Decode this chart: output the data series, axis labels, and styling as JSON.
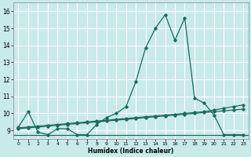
{
  "xlabel": "Humidex (Indice chaleur)",
  "background_color": "#c8eae8",
  "grid_color": "#ffffff",
  "line_color": "#1a6b5a",
  "xlim": [
    -0.5,
    23.5
  ],
  "ylim": [
    8.5,
    16.5
  ],
  "xticks": [
    0,
    1,
    2,
    3,
    4,
    5,
    6,
    7,
    8,
    9,
    10,
    11,
    12,
    13,
    14,
    15,
    16,
    17,
    18,
    19,
    20,
    21,
    22,
    23
  ],
  "yticks": [
    9,
    10,
    11,
    12,
    13,
    14,
    15,
    16
  ],
  "series1_x": [
    0,
    1,
    2,
    3,
    4,
    5,
    6,
    7,
    8,
    9,
    10,
    11,
    12,
    13,
    14,
    15,
    16,
    17,
    18,
    19,
    20,
    21,
    22,
    23
  ],
  "series1_y": [
    9.2,
    10.1,
    8.9,
    8.75,
    9.1,
    9.1,
    8.75,
    8.75,
    9.35,
    9.75,
    10.0,
    10.4,
    11.85,
    13.85,
    15.0,
    15.8,
    14.3,
    15.6,
    10.9,
    10.6,
    9.9,
    8.75,
    8.75,
    8.75
  ],
  "series2_x": [
    0,
    1,
    2,
    3,
    4,
    5,
    6,
    7,
    8,
    9,
    10,
    11,
    12,
    13,
    14,
    15,
    16,
    17,
    18,
    19,
    20,
    21,
    22,
    23
  ],
  "series2_y": [
    9.15,
    9.2,
    9.25,
    9.3,
    9.35,
    9.4,
    9.45,
    9.5,
    9.55,
    9.6,
    9.65,
    9.7,
    9.75,
    9.8,
    9.85,
    9.9,
    9.95,
    10.0,
    10.05,
    10.1,
    10.2,
    10.3,
    10.4,
    10.5
  ],
  "series3_x": [
    0,
    1,
    2,
    3,
    4,
    5,
    6,
    7,
    8,
    9,
    10,
    11,
    12,
    13,
    14,
    15,
    16,
    17,
    18,
    19,
    20,
    21,
    22,
    23
  ],
  "series3_y": [
    9.1,
    9.15,
    9.2,
    9.25,
    9.3,
    9.35,
    9.4,
    9.45,
    9.5,
    9.55,
    9.6,
    9.65,
    9.7,
    9.75,
    9.8,
    9.85,
    9.9,
    9.95,
    10.0,
    10.05,
    10.1,
    10.15,
    10.2,
    10.25
  ],
  "flat_y": 8.72
}
